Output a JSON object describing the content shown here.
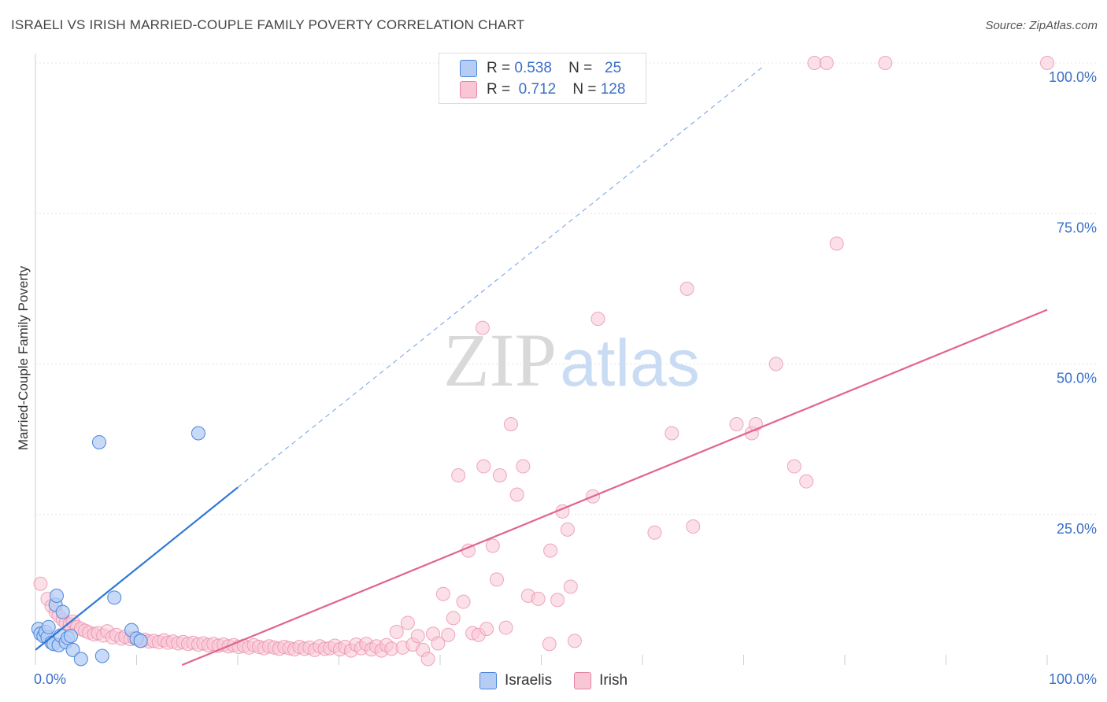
{
  "title": "ISRAELI VS IRISH MARRIED-COUPLE FAMILY POVERTY CORRELATION CHART",
  "source": "Source: ZipAtlas.com",
  "watermark": {
    "part1": "ZIP",
    "part2": "atlas"
  },
  "legend": {
    "israelis": {
      "r_label": "R =",
      "r_value": "0.538",
      "n_label": "N =",
      "n_value": "25"
    },
    "irish": {
      "r_label": "R =",
      "r_value": "0.712",
      "n_label": "N =",
      "n_value": "128"
    }
  },
  "chart_data": {
    "type": "scatter",
    "title": "ISRAELI VS IRISH MARRIED-COUPLE FAMILY POVERTY CORRELATION CHART",
    "xlabel": "",
    "ylabel": "Married-Couple Family Poverty",
    "xlim": [
      0,
      100
    ],
    "ylim": [
      0,
      100
    ],
    "x_tick_labels": [
      "0.0%",
      "100.0%"
    ],
    "y_tick_labels": [
      {
        "value": 25,
        "label": "25.0%"
      },
      {
        "value": 50,
        "label": "50.0%"
      },
      {
        "value": 75,
        "label": "75.0%"
      },
      {
        "value": 100,
        "label": "100.0%"
      }
    ],
    "grid": true,
    "legend_position": "top-center",
    "colors": {
      "israelis_fill": "#b5cdf5",
      "israelis_stroke": "#4a86d8",
      "israelis_line": "#2f78d6",
      "irish_fill": "#f9c6d6",
      "irish_stroke": "#e784a6",
      "irish_line": "#e0648e",
      "tick_label": "#3a6fc8"
    },
    "series": [
      {
        "name": "Israelis",
        "points": [
          [
            0.3,
            6.0
          ],
          [
            0.5,
            5.2
          ],
          [
            0.8,
            4.8
          ],
          [
            1.0,
            5.5
          ],
          [
            1.2,
            4.6
          ],
          [
            1.3,
            6.3
          ],
          [
            1.6,
            3.7
          ],
          [
            1.8,
            3.5
          ],
          [
            2.0,
            10.0
          ],
          [
            2.1,
            11.5
          ],
          [
            2.3,
            3.3
          ],
          [
            2.5,
            4.9
          ],
          [
            2.7,
            8.8
          ],
          [
            3.0,
            3.8
          ],
          [
            3.2,
            4.5
          ],
          [
            3.5,
            4.8
          ],
          [
            3.7,
            2.5
          ],
          [
            4.5,
            1.0
          ],
          [
            6.3,
            37.0
          ],
          [
            6.6,
            1.5
          ],
          [
            7.8,
            11.2
          ],
          [
            9.5,
            5.8
          ],
          [
            10.0,
            4.4
          ],
          [
            10.4,
            4.0
          ],
          [
            16.1,
            38.5
          ]
        ],
        "trend": {
          "x0": 0,
          "y0": 2.5,
          "x1": 20,
          "y1": 29.5,
          "dash_x1": 72,
          "dash_y1": 99.5
        }
      },
      {
        "name": "Irish",
        "points": [
          [
            0.5,
            13.5
          ],
          [
            1.2,
            11.0
          ],
          [
            1.6,
            9.8
          ],
          [
            2.0,
            8.8
          ],
          [
            2.3,
            8.2
          ],
          [
            2.7,
            7.5
          ],
          [
            3.0,
            7.0
          ],
          [
            3.4,
            6.8
          ],
          [
            3.7,
            7.2
          ],
          [
            4.1,
            6.3
          ],
          [
            4.5,
            6.0
          ],
          [
            4.9,
            5.7
          ],
          [
            5.3,
            5.4
          ],
          [
            5.8,
            5.1
          ],
          [
            6.2,
            5.3
          ],
          [
            6.7,
            4.9
          ],
          [
            7.1,
            5.6
          ],
          [
            7.6,
            4.6
          ],
          [
            8.0,
            5.0
          ],
          [
            8.5,
            4.4
          ],
          [
            8.9,
            4.7
          ],
          [
            9.4,
            4.3
          ],
          [
            9.8,
            4.5
          ],
          [
            10.3,
            4.1
          ],
          [
            10.8,
            4.2
          ],
          [
            11.2,
            3.9
          ],
          [
            11.7,
            4.0
          ],
          [
            12.2,
            3.8
          ],
          [
            12.7,
            4.1
          ],
          [
            13.1,
            3.7
          ],
          [
            13.6,
            3.9
          ],
          [
            14.1,
            3.6
          ],
          [
            14.6,
            3.8
          ],
          [
            15.1,
            3.5
          ],
          [
            15.6,
            3.7
          ],
          [
            16.1,
            3.4
          ],
          [
            16.6,
            3.6
          ],
          [
            17.1,
            3.3
          ],
          [
            17.6,
            3.5
          ],
          [
            18.1,
            3.2
          ],
          [
            18.6,
            3.4
          ],
          [
            19.1,
            3.1
          ],
          [
            19.6,
            3.3
          ],
          [
            20.1,
            3.0
          ],
          [
            20.6,
            3.2
          ],
          [
            21.1,
            2.9
          ],
          [
            21.6,
            3.3
          ],
          [
            22.1,
            3.0
          ],
          [
            22.6,
            2.8
          ],
          [
            23.1,
            3.1
          ],
          [
            23.6,
            2.9
          ],
          [
            24.1,
            2.7
          ],
          [
            24.6,
            3.0
          ],
          [
            25.1,
            2.8
          ],
          [
            25.6,
            2.6
          ],
          [
            26.1,
            3.0
          ],
          [
            26.6,
            2.7
          ],
          [
            27.1,
            2.9
          ],
          [
            27.6,
            2.5
          ],
          [
            28.1,
            3.1
          ],
          [
            28.6,
            2.7
          ],
          [
            29.1,
            2.8
          ],
          [
            29.6,
            3.2
          ],
          [
            30.1,
            2.6
          ],
          [
            30.6,
            3.0
          ],
          [
            31.2,
            2.4
          ],
          [
            31.7,
            3.4
          ],
          [
            32.2,
            2.8
          ],
          [
            32.7,
            3.5
          ],
          [
            33.2,
            2.6
          ],
          [
            33.7,
            3.1
          ],
          [
            34.2,
            2.4
          ],
          [
            34.7,
            3.3
          ],
          [
            35.2,
            2.7
          ],
          [
            35.7,
            5.5
          ],
          [
            36.3,
            2.9
          ],
          [
            36.8,
            7.0
          ],
          [
            37.3,
            3.4
          ],
          [
            37.8,
            4.8
          ],
          [
            38.3,
            2.5
          ],
          [
            38.8,
            1.0
          ],
          [
            39.3,
            5.2
          ],
          [
            39.8,
            3.6
          ],
          [
            40.3,
            11.8
          ],
          [
            40.8,
            5.0
          ],
          [
            41.3,
            7.8
          ],
          [
            41.8,
            31.5
          ],
          [
            42.3,
            10.5
          ],
          [
            42.8,
            19.0
          ],
          [
            43.2,
            5.3
          ],
          [
            43.8,
            5.0
          ],
          [
            44.3,
            33.0
          ],
          [
            44.6,
            6.0
          ],
          [
            45.2,
            19.8
          ],
          [
            45.6,
            14.2
          ],
          [
            45.9,
            31.5
          ],
          [
            46.5,
            6.2
          ],
          [
            47.0,
            40.0
          ],
          [
            47.6,
            28.3
          ],
          [
            48.2,
            33.0
          ],
          [
            48.7,
            11.5
          ],
          [
            49.7,
            11.0
          ],
          [
            50.8,
            3.5
          ],
          [
            50.9,
            19.0
          ],
          [
            51.6,
            10.8
          ],
          [
            52.1,
            25.5
          ],
          [
            52.6,
            22.5
          ],
          [
            52.9,
            13.0
          ],
          [
            53.3,
            4.0
          ],
          [
            55.1,
            28.0
          ],
          [
            55.6,
            57.5
          ],
          [
            61.2,
            22.0
          ],
          [
            62.9,
            38.5
          ],
          [
            64.4,
            62.5
          ],
          [
            65.0,
            23.0
          ],
          [
            69.3,
            40.0
          ],
          [
            70.8,
            38.5
          ],
          [
            71.2,
            40.0
          ],
          [
            73.2,
            50.0
          ],
          [
            75.0,
            33.0
          ],
          [
            76.2,
            30.5
          ],
          [
            77.0,
            100.0
          ],
          [
            78.2,
            100.0
          ],
          [
            79.2,
            70.0
          ],
          [
            84.0,
            100.0
          ],
          [
            100.0,
            100.0
          ],
          [
            44.2,
            56.0
          ]
        ],
        "trend": {
          "x0": 0,
          "y0": -10.0,
          "x1": 100,
          "y1": 59.0
        }
      }
    ]
  }
}
